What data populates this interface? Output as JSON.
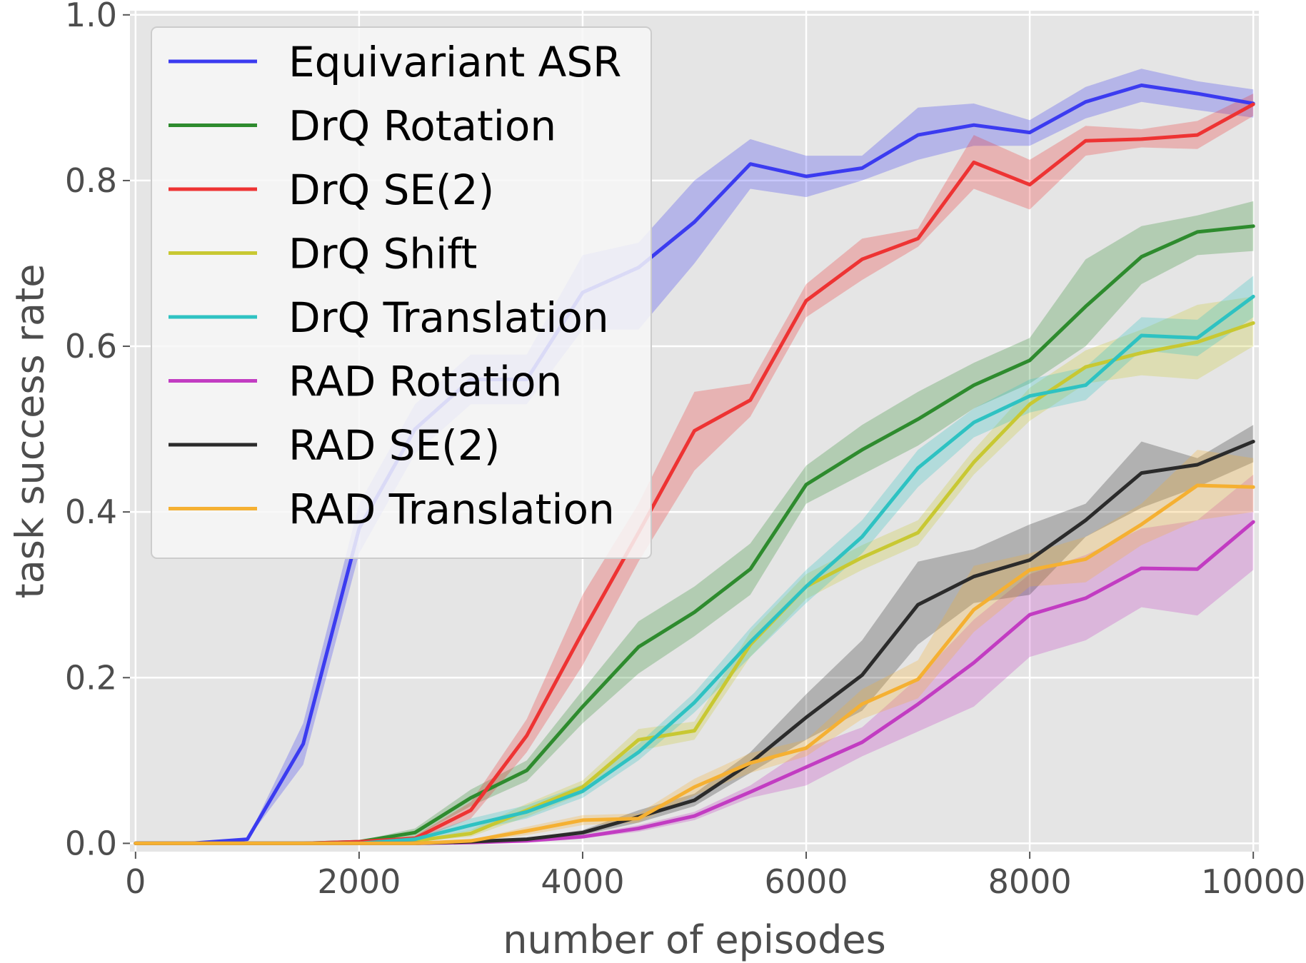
{
  "chart_data": {
    "type": "line",
    "title": "",
    "xlabel": "number of episodes",
    "ylabel": "task success rate",
    "xlim": [
      -50,
      10050
    ],
    "ylim": [
      -0.01,
      1.005
    ],
    "xticks": [
      0,
      2000,
      4000,
      6000,
      8000,
      10000
    ],
    "xtick_labels": [
      "0",
      "2000",
      "4000",
      "6000",
      "8000",
      "10000"
    ],
    "yticks": [
      0.0,
      0.2,
      0.4,
      0.6,
      0.8,
      1.0
    ],
    "ytick_labels": [
      "0.0",
      "0.2",
      "0.4",
      "0.6",
      "0.8",
      "1.0"
    ],
    "grid": true,
    "legend_position": "top-left",
    "x": [
      0,
      500,
      1000,
      1500,
      2000,
      2500,
      3000,
      3500,
      4000,
      4500,
      5000,
      5500,
      6000,
      6500,
      7000,
      7500,
      8000,
      8500,
      9000,
      9500,
      10000
    ],
    "series": [
      {
        "name": "Equivariant ASR",
        "color": "#3b3bf0",
        "values": [
          0.0,
          0.0,
          0.005,
          0.12,
          0.38,
          0.5,
          0.56,
          0.56,
          0.665,
          0.695,
          0.75,
          0.82,
          0.805,
          0.815,
          0.855,
          0.867,
          0.858,
          0.895,
          0.915,
          0.905,
          0.893
        ],
        "lower": [
          0.0,
          0.0,
          0.005,
          0.095,
          0.35,
          0.47,
          0.53,
          0.53,
          0.62,
          0.62,
          0.7,
          0.79,
          0.78,
          0.8,
          0.825,
          0.842,
          0.842,
          0.875,
          0.895,
          0.885,
          0.876
        ],
        "upper": [
          0.0,
          0.0,
          0.005,
          0.145,
          0.41,
          0.53,
          0.59,
          0.59,
          0.71,
          0.725,
          0.8,
          0.85,
          0.83,
          0.83,
          0.888,
          0.893,
          0.873,
          0.913,
          0.935,
          0.92,
          0.91
        ]
      },
      {
        "name": "DrQ Rotation",
        "color": "#2e8b2e",
        "values": [
          0.0,
          0.0,
          0.0,
          0.0,
          0.002,
          0.013,
          0.055,
          0.088,
          0.165,
          0.237,
          0.279,
          0.331,
          0.433,
          0.475,
          0.512,
          0.553,
          0.583,
          0.648,
          0.708,
          0.738,
          0.745
        ],
        "lower": [
          0.0,
          0.0,
          0.0,
          0.0,
          0.001,
          0.008,
          0.045,
          0.075,
          0.145,
          0.205,
          0.25,
          0.3,
          0.41,
          0.445,
          0.48,
          0.525,
          0.555,
          0.6,
          0.675,
          0.71,
          0.715
        ],
        "upper": [
          0.0,
          0.0,
          0.0,
          0.0,
          0.003,
          0.018,
          0.065,
          0.1,
          0.185,
          0.268,
          0.31,
          0.362,
          0.456,
          0.505,
          0.545,
          0.58,
          0.61,
          0.705,
          0.745,
          0.758,
          0.775
        ]
      },
      {
        "name": "DrQ SE(2)",
        "color": "#ee3333",
        "values": [
          0.0,
          0.0,
          0.0,
          0.0,
          0.002,
          0.006,
          0.04,
          0.13,
          0.255,
          0.375,
          0.498,
          0.535,
          0.655,
          0.705,
          0.73,
          0.822,
          0.795,
          0.848,
          0.85,
          0.855,
          0.892
        ],
        "lower": [
          0.0,
          0.0,
          0.0,
          0.0,
          0.001,
          0.003,
          0.03,
          0.11,
          0.215,
          0.34,
          0.45,
          0.515,
          0.635,
          0.68,
          0.72,
          0.79,
          0.765,
          0.83,
          0.84,
          0.838,
          0.878
        ],
        "upper": [
          0.0,
          0.0,
          0.0,
          0.0,
          0.003,
          0.009,
          0.05,
          0.15,
          0.3,
          0.41,
          0.545,
          0.555,
          0.675,
          0.73,
          0.742,
          0.855,
          0.825,
          0.866,
          0.862,
          0.872,
          0.905
        ]
      },
      {
        "name": "DrQ Shift",
        "color": "#c8c832",
        "values": [
          0.0,
          0.0,
          0.0,
          0.0,
          0.0,
          0.003,
          0.012,
          0.04,
          0.068,
          0.125,
          0.136,
          0.24,
          0.31,
          0.345,
          0.375,
          0.46,
          0.53,
          0.575,
          0.592,
          0.605,
          0.628
        ],
        "lower": [
          0.0,
          0.0,
          0.0,
          0.0,
          0.0,
          0.002,
          0.008,
          0.032,
          0.06,
          0.112,
          0.125,
          0.225,
          0.295,
          0.33,
          0.36,
          0.445,
          0.51,
          0.555,
          0.565,
          0.56,
          0.6
        ],
        "upper": [
          0.0,
          0.0,
          0.0,
          0.0,
          0.0,
          0.004,
          0.016,
          0.048,
          0.076,
          0.138,
          0.147,
          0.255,
          0.325,
          0.36,
          0.39,
          0.475,
          0.55,
          0.595,
          0.62,
          0.65,
          0.66
        ]
      },
      {
        "name": "DrQ Translation",
        "color": "#2ec2c2",
        "values": [
          0.0,
          0.0,
          0.0,
          0.0,
          0.0,
          0.005,
          0.022,
          0.038,
          0.063,
          0.11,
          0.17,
          0.243,
          0.31,
          0.37,
          0.453,
          0.508,
          0.54,
          0.553,
          0.613,
          0.61,
          0.66
        ],
        "lower": [
          0.0,
          0.0,
          0.0,
          0.0,
          0.0,
          0.003,
          0.015,
          0.03,
          0.055,
          0.1,
          0.158,
          0.225,
          0.29,
          0.35,
          0.43,
          0.49,
          0.52,
          0.535,
          0.595,
          0.588,
          0.635
        ],
        "upper": [
          0.0,
          0.0,
          0.0,
          0.0,
          0.0,
          0.007,
          0.03,
          0.046,
          0.071,
          0.12,
          0.182,
          0.26,
          0.33,
          0.39,
          0.475,
          0.525,
          0.56,
          0.575,
          0.635,
          0.632,
          0.685
        ]
      },
      {
        "name": "RAD Rotation",
        "color": "#c23cc2",
        "values": [
          0.0,
          0.0,
          0.0,
          0.0,
          0.0,
          0.0,
          0.001,
          0.003,
          0.008,
          0.018,
          0.033,
          0.062,
          0.092,
          0.122,
          0.168,
          0.218,
          0.276,
          0.296,
          0.332,
          0.331,
          0.388
        ],
        "lower": [
          0.0,
          0.0,
          0.0,
          0.0,
          0.0,
          0.0,
          0.001,
          0.002,
          0.006,
          0.014,
          0.028,
          0.055,
          0.07,
          0.105,
          0.135,
          0.165,
          0.225,
          0.245,
          0.285,
          0.275,
          0.33
        ],
        "upper": [
          0.0,
          0.0,
          0.0,
          0.0,
          0.0,
          0.0,
          0.002,
          0.004,
          0.01,
          0.022,
          0.038,
          0.07,
          0.115,
          0.14,
          0.2,
          0.27,
          0.325,
          0.348,
          0.38,
          0.39,
          0.445
        ]
      },
      {
        "name": "RAD SE(2)",
        "color": "#2b2b2b",
        "values": [
          0.0,
          0.0,
          0.0,
          0.0,
          0.0,
          0.0,
          0.002,
          0.005,
          0.013,
          0.032,
          0.052,
          0.097,
          0.152,
          0.203,
          0.288,
          0.322,
          0.342,
          0.39,
          0.447,
          0.457,
          0.485
        ],
        "lower": [
          0.0,
          0.0,
          0.0,
          0.0,
          0.0,
          0.0,
          0.001,
          0.004,
          0.01,
          0.025,
          0.045,
          0.085,
          0.125,
          0.16,
          0.24,
          0.29,
          0.3,
          0.37,
          0.405,
          0.43,
          0.46
        ],
        "upper": [
          0.0,
          0.0,
          0.0,
          0.0,
          0.0,
          0.0,
          0.003,
          0.006,
          0.016,
          0.04,
          0.06,
          0.11,
          0.18,
          0.245,
          0.34,
          0.355,
          0.385,
          0.41,
          0.485,
          0.465,
          0.505
        ]
      },
      {
        "name": "RAD Translation",
        "color": "#f5b032",
        "values": [
          0.0,
          0.0,
          0.0,
          0.0,
          0.0,
          0.0,
          0.003,
          0.015,
          0.028,
          0.03,
          0.068,
          0.097,
          0.115,
          0.168,
          0.198,
          0.282,
          0.33,
          0.343,
          0.385,
          0.432,
          0.43
        ],
        "lower": [
          0.0,
          0.0,
          0.0,
          0.0,
          0.0,
          0.0,
          0.002,
          0.01,
          0.022,
          0.025,
          0.058,
          0.085,
          0.105,
          0.15,
          0.175,
          0.255,
          0.31,
          0.315,
          0.36,
          0.39,
          0.4
        ],
        "upper": [
          0.0,
          0.0,
          0.0,
          0.0,
          0.0,
          0.0,
          0.004,
          0.02,
          0.034,
          0.036,
          0.078,
          0.109,
          0.125,
          0.186,
          0.221,
          0.335,
          0.35,
          0.37,
          0.41,
          0.475,
          0.465
        ]
      }
    ]
  }
}
